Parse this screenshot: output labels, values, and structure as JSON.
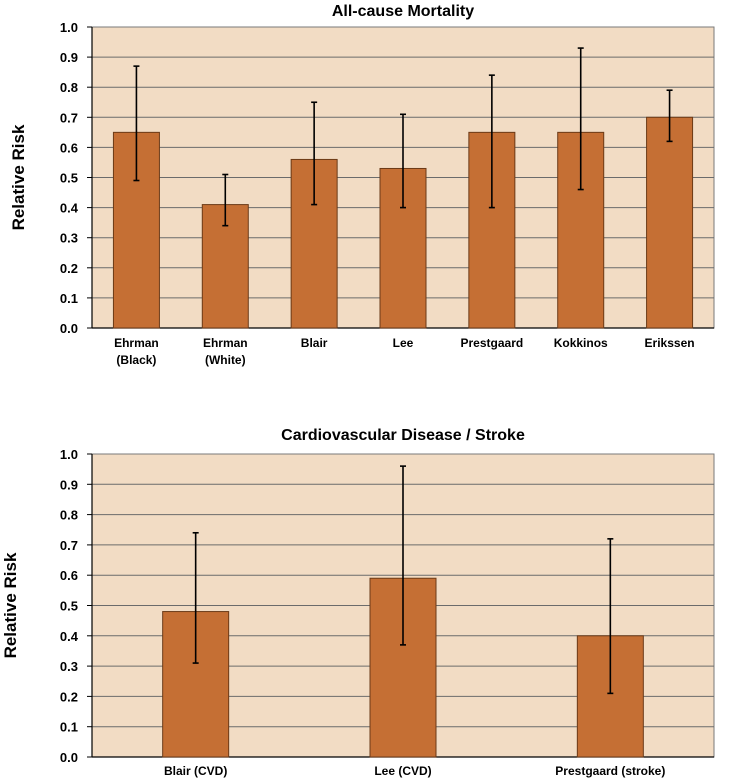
{
  "colors": {
    "plot_background": "#F2DCC4",
    "bar_fill": "#C56F34",
    "bar_stroke": "#6b3a17",
    "gridline": "#6b6b6b",
    "error_bar": "#000000"
  },
  "chart_data": [
    {
      "type": "bar",
      "title": "All-cause Mortality",
      "xlabel": "",
      "ylabel": "Relative Risk",
      "ylim": [
        0,
        1.0
      ],
      "yticks": [
        "0.0",
        "0.1",
        "0.2",
        "0.3",
        "0.4",
        "0.5",
        "0.6",
        "0.7",
        "0.8",
        "0.9",
        "1.0"
      ],
      "grid": true,
      "categories": [
        [
          "Ehrman",
          "(Black)"
        ],
        [
          "Ehrman",
          "(White)"
        ],
        [
          "Blair"
        ],
        [
          "Lee"
        ],
        [
          "Prestgaard"
        ],
        [
          "Kokkinos"
        ],
        [
          "Erikssen"
        ]
      ],
      "values": [
        0.65,
        0.41,
        0.56,
        0.53,
        0.65,
        0.65,
        0.7
      ],
      "error_low": [
        0.49,
        0.34,
        0.41,
        0.4,
        0.4,
        0.46,
        0.62
      ],
      "error_high": [
        0.87,
        0.51,
        0.75,
        0.71,
        0.84,
        0.93,
        0.79
      ]
    },
    {
      "type": "bar",
      "title": "Cardiovascular Disease / Stroke",
      "xlabel": "",
      "ylabel": "Relative Risk",
      "ylim": [
        0,
        1.0
      ],
      "yticks": [
        "0.0",
        "0.1",
        "0.2",
        "0.3",
        "0.4",
        "0.5",
        "0.6",
        "0.7",
        "0.8",
        "0.9",
        "1.0"
      ],
      "grid": true,
      "categories": [
        [
          "Blair (CVD)"
        ],
        [
          "Lee (CVD)"
        ],
        [
          "Prestgaard (stroke)"
        ]
      ],
      "values": [
        0.48,
        0.59,
        0.4
      ],
      "error_low": [
        0.31,
        0.37,
        0.21
      ],
      "error_high": [
        0.74,
        0.96,
        0.72
      ]
    }
  ]
}
